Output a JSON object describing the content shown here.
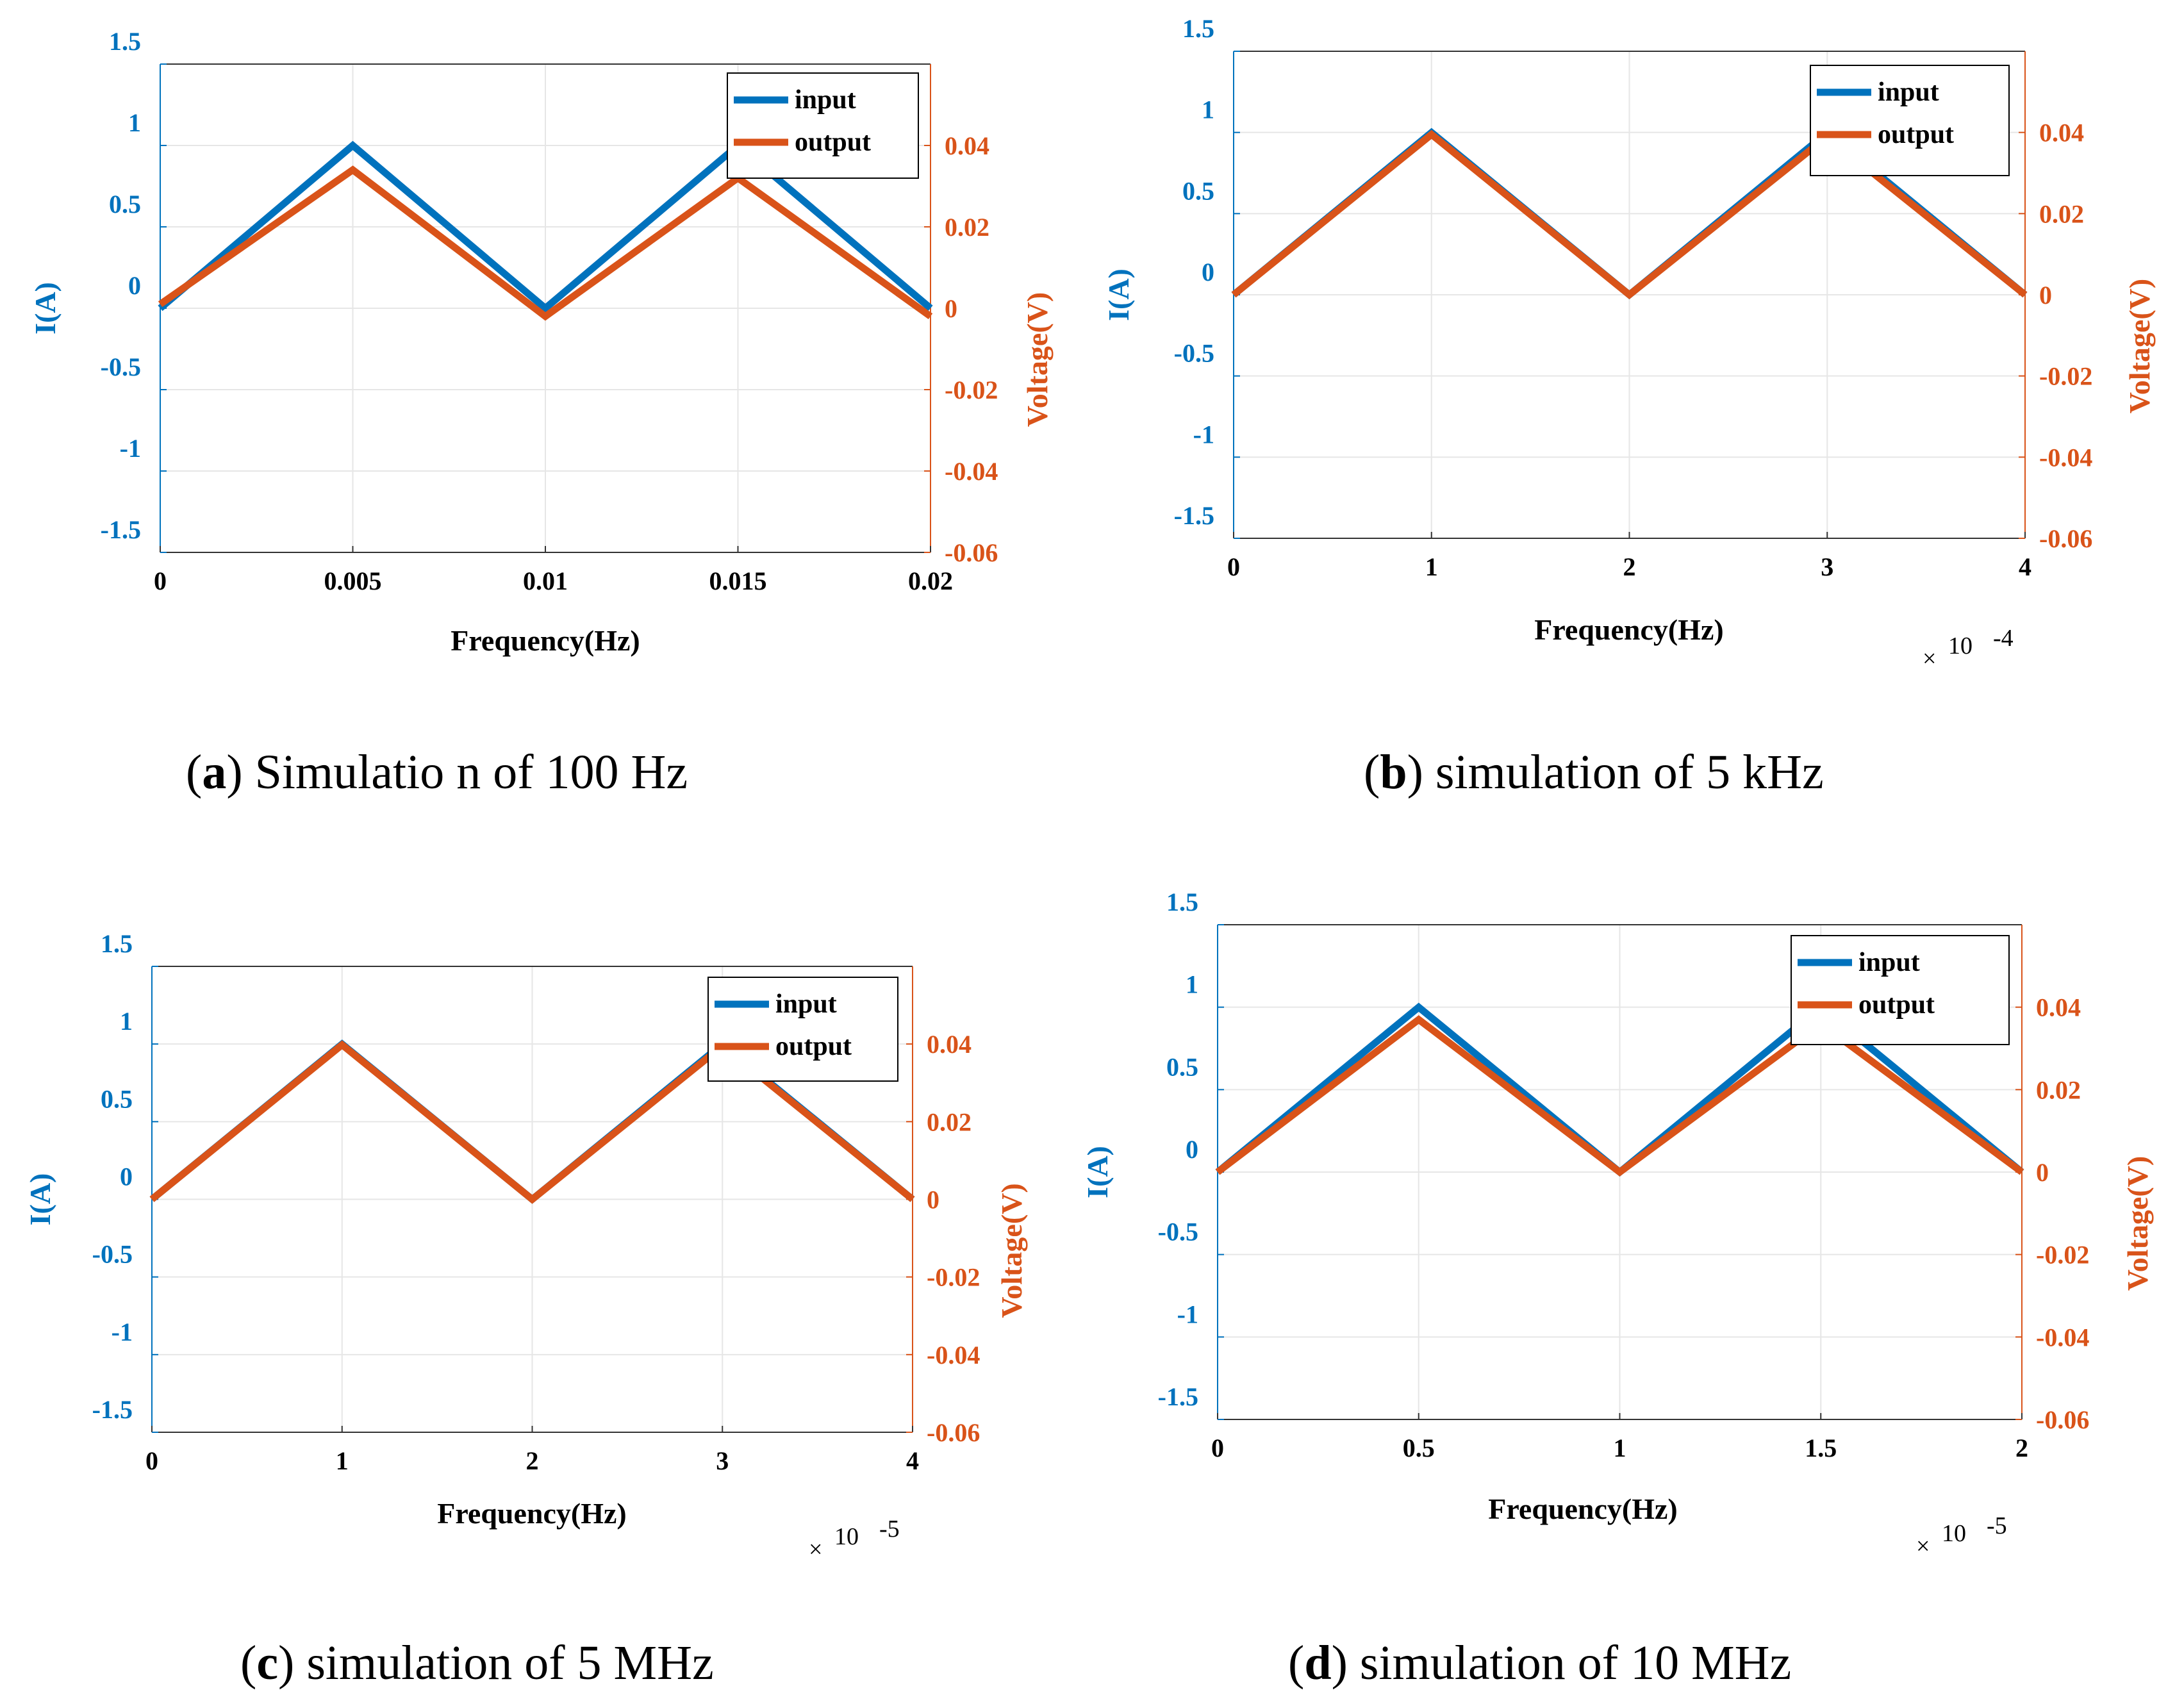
{
  "colors": {
    "input": "#0072BD",
    "output": "#D95319",
    "left_axis": "#0072BD",
    "right_axis": "#D95319",
    "grid": "#e6e6e6"
  },
  "chart_data": [
    {
      "type": "line",
      "caption": {
        "open": "(",
        "letter": "a",
        "rest": ") Simulatio n of 100 Hz"
      },
      "xlabel": "Frequency(Hz)",
      "ylabel": "I(A)",
      "ylabel_right": "Voltage(V)",
      "x_exponent": "",
      "xlim": [
        0,
        0.02
      ],
      "ylim": [
        -1.5,
        1.5
      ],
      "ylim_right": [
        -0.06,
        0.06
      ],
      "xticks": [
        0,
        0.005,
        0.01,
        0.015,
        0.02
      ],
      "xtick_labels": [
        "0",
        "0.005",
        "0.01",
        "0.015",
        "0.02"
      ],
      "yticks": [
        -1.5,
        -1,
        -0.5,
        0,
        0.5,
        1,
        1.5
      ],
      "ytick_labels": [
        "-1.5",
        "-1",
        "-0.5",
        "0",
        "0.5",
        "1",
        "1.5"
      ],
      "yticks_right": [
        -0.06,
        -0.04,
        -0.02,
        0,
        0.02,
        0.04
      ],
      "ytick_labels_right": [
        "-0.06",
        "-0.04",
        "-0.02",
        "0",
        "0.02",
        "0.04"
      ],
      "legend": [
        "input",
        "output"
      ],
      "legend_position": "top-right",
      "series": [
        {
          "name": "input",
          "axis": "left",
          "x": [
            0,
            0.005,
            0.01,
            0.015,
            0.02
          ],
          "y": [
            0,
            1,
            0,
            1,
            0
          ]
        },
        {
          "name": "output",
          "axis": "right",
          "x": [
            0,
            0.005,
            0.01,
            0.015,
            0.02
          ],
          "y": [
            0.001,
            0.034,
            -0.002,
            0.032,
            -0.002
          ]
        }
      ]
    },
    {
      "type": "line",
      "caption": {
        "open": "(",
        "letter": "b",
        "rest": ") simulation of 5 kHz"
      },
      "xlabel": "Frequency(Hz)",
      "ylabel": "I(A)",
      "ylabel_right": "Voltage(V)",
      "x_exponent": "-4",
      "xlim": [
        0,
        4
      ],
      "ylim": [
        -1.5,
        1.5
      ],
      "ylim_right": [
        -0.06,
        0.06
      ],
      "xticks": [
        0,
        1,
        2,
        3,
        4
      ],
      "xtick_labels": [
        "0",
        "1",
        "2",
        "3",
        "4"
      ],
      "yticks": [
        -1.5,
        -1,
        -0.5,
        0,
        0.5,
        1,
        1.5
      ],
      "ytick_labels": [
        "-1.5",
        "-1",
        "-0.5",
        "0",
        "0.5",
        "1",
        "1.5"
      ],
      "yticks_right": [
        -0.06,
        -0.04,
        -0.02,
        0,
        0.02,
        0.04
      ],
      "ytick_labels_right": [
        "-0.06",
        "-0.04",
        "-0.02",
        "0",
        "0.02",
        "0.04"
      ],
      "legend": [
        "input",
        "output"
      ],
      "legend_position": "top-right",
      "series": [
        {
          "name": "input",
          "axis": "left",
          "x": [
            0,
            1,
            2,
            3,
            4
          ],
          "y": [
            0,
            1,
            0,
            1,
            0
          ]
        },
        {
          "name": "output",
          "axis": "right",
          "x": [
            0,
            1,
            2,
            3,
            4
          ],
          "y": [
            0,
            0.0395,
            0,
            0.039,
            0
          ]
        }
      ]
    },
    {
      "type": "line",
      "caption": {
        "open": "(",
        "letter": "c",
        "rest": ") simulation of 5 MHz"
      },
      "xlabel": "Frequency(Hz)",
      "ylabel": "I(A)",
      "ylabel_right": "Voltage(V)",
      "x_exponent": "-5",
      "xlim": [
        0,
        4
      ],
      "ylim": [
        -1.5,
        1.5
      ],
      "ylim_right": [
        -0.06,
        0.06
      ],
      "xticks": [
        0,
        1,
        2,
        3,
        4
      ],
      "xtick_labels": [
        "0",
        "1",
        "2",
        "3",
        "4"
      ],
      "yticks": [
        -1.5,
        -1,
        -0.5,
        0,
        0.5,
        1,
        1.5
      ],
      "ytick_labels": [
        "-1.5",
        "-1",
        "-0.5",
        "0",
        "0.5",
        "1",
        "1.5"
      ],
      "yticks_right": [
        -0.06,
        -0.04,
        -0.02,
        0,
        0.02,
        0.04
      ],
      "ytick_labels_right": [
        "-0.06",
        "-0.04",
        "-0.02",
        "0",
        "0.02",
        "0.04"
      ],
      "legend": [
        "input",
        "output"
      ],
      "legend_position": "top-right",
      "series": [
        {
          "name": "input",
          "axis": "left",
          "x": [
            0,
            1,
            2,
            3,
            4
          ],
          "y": [
            0,
            1,
            0,
            1,
            0
          ]
        },
        {
          "name": "output",
          "axis": "right",
          "x": [
            0,
            1,
            2,
            3,
            4
          ],
          "y": [
            0,
            0.0398,
            0,
            0.0395,
            0
          ]
        }
      ]
    },
    {
      "type": "line",
      "caption": {
        "open": "(",
        "letter": "d",
        "rest": ") simulation of 10 MHz"
      },
      "xlabel": "Frequency(Hz)",
      "ylabel": "I(A)",
      "ylabel_right": "Voltage(V)",
      "x_exponent": "-5",
      "xlim": [
        0,
        2
      ],
      "ylim": [
        -1.5,
        1.5
      ],
      "ylim_right": [
        -0.06,
        0.06
      ],
      "xticks": [
        0,
        0.5,
        1,
        1.5,
        2
      ],
      "xtick_labels": [
        "0",
        "0.5",
        "1",
        "1.5",
        "2"
      ],
      "yticks": [
        -1.5,
        -1,
        -0.5,
        0,
        0.5,
        1,
        1.5
      ],
      "ytick_labels": [
        "-1.5",
        "-1",
        "-0.5",
        "0",
        "0.5",
        "1",
        "1.5"
      ],
      "yticks_right": [
        -0.06,
        -0.04,
        -0.02,
        0,
        0.02,
        0.04
      ],
      "ytick_labels_right": [
        "-0.06",
        "-0.04",
        "-0.02",
        "0",
        "0.02",
        "0.04"
      ],
      "legend": [
        "input",
        "output"
      ],
      "legend_position": "top-right",
      "series": [
        {
          "name": "input",
          "axis": "left",
          "x": [
            0,
            0.5,
            1,
            1.5,
            2
          ],
          "y": [
            0,
            1,
            0,
            1,
            0
          ]
        },
        {
          "name": "output",
          "axis": "right",
          "x": [
            0,
            0.5,
            1,
            1.5,
            2
          ],
          "y": [
            0,
            0.037,
            0,
            0.036,
            0
          ]
        }
      ]
    }
  ]
}
